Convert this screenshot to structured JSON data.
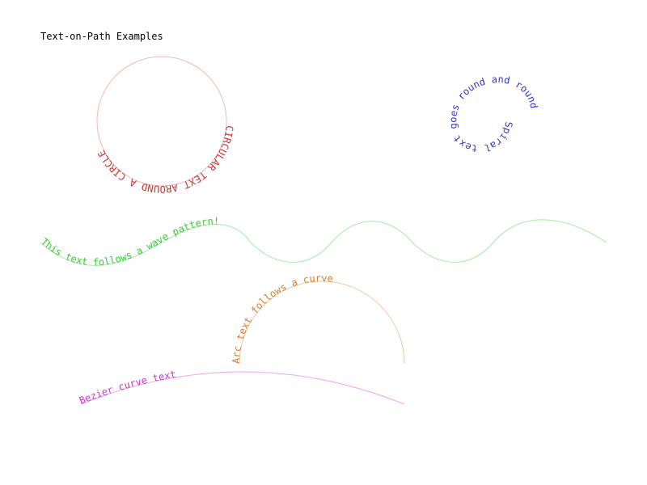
{
  "title": "Text-on-Path Examples",
  "paths": {
    "circle": {
      "text": "CIRCULAR TEXT AROUND A CIRCLE",
      "color": "#cc3333",
      "stroke": "#f0b8b8"
    },
    "spiral": {
      "text": "Spiral text goes round and round",
      "color": "#3333cc"
    },
    "wave": {
      "text": "This text follows a wave pattern!",
      "color": "#33cc33",
      "stroke": "#a8e8a8"
    },
    "arc": {
      "text": "Arc text follows a curve",
      "color": "#d97a2a",
      "stroke": "#f2c9a4"
    },
    "bezier": {
      "text": "Bezier curve text",
      "color": "#cc33cc",
      "stroke": "#eea8ee"
    }
  }
}
